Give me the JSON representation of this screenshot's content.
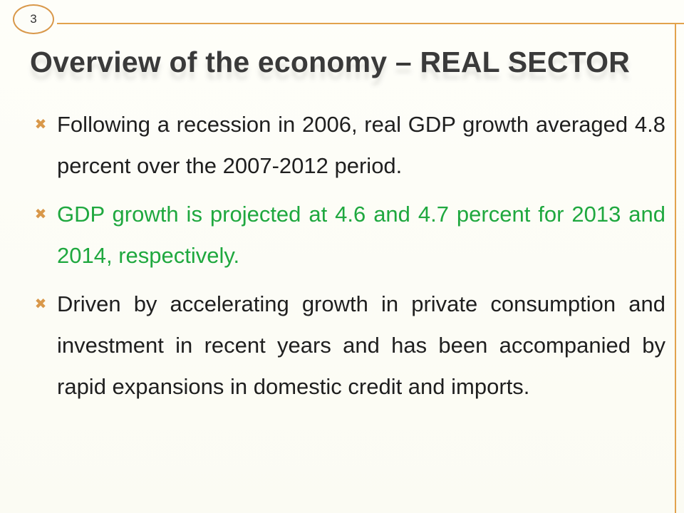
{
  "slide": {
    "page_number": "3",
    "title": "Overview of the economy – REAL SECTOR",
    "accent_color": "#e2a24d",
    "bullets": [
      {
        "icon": "x-mark-icon",
        "text": "Following a recession in 2006, real GDP growth averaged 4.8 percent over the 2007-2012 period.",
        "color": "#1f1f1f"
      },
      {
        "icon": "x-mark-icon",
        "text": "GDP growth is projected at 4.6 and 4.7 percent for 2013 and 2014, respectively.",
        "color": "#1fa83f"
      },
      {
        "icon": "x-mark-icon",
        "text": "Driven by accelerating growth in private consumption and investment in recent years and has been accompanied by rapid expansions in domestic credit and imports.",
        "color": "#1f1f1f"
      }
    ]
  }
}
